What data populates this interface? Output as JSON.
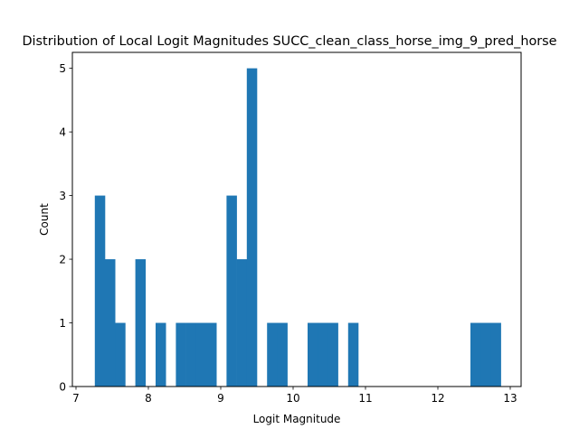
{
  "chart_data": {
    "type": "bar",
    "title": "Distribution of Local Logit Magnitudes SUCC_clean_class_horse_img_9_pred_horse",
    "xlabel": "Logit Magnitude",
    "ylabel": "Count",
    "xlim": [
      6.95,
      13.15
    ],
    "ylim": [
      0,
      5.25
    ],
    "x_ticks": [
      7,
      8,
      9,
      10,
      11,
      12,
      13
    ],
    "y_ticks": [
      0,
      1,
      2,
      3,
      4,
      5
    ],
    "bin_width": 0.14,
    "bins": [
      {
        "x0": 7.26,
        "count": 3
      },
      {
        "x0": 7.4,
        "count": 2
      },
      {
        "x0": 7.54,
        "count": 1
      },
      {
        "x0": 7.82,
        "count": 2
      },
      {
        "x0": 8.1,
        "count": 1
      },
      {
        "x0": 8.38,
        "count": 1
      },
      {
        "x0": 8.52,
        "count": 1
      },
      {
        "x0": 8.66,
        "count": 1
      },
      {
        "x0": 8.8,
        "count": 1
      },
      {
        "x0": 9.08,
        "count": 3
      },
      {
        "x0": 9.22,
        "count": 2
      },
      {
        "x0": 9.36,
        "count": 5
      },
      {
        "x0": 9.64,
        "count": 1
      },
      {
        "x0": 9.78,
        "count": 1
      },
      {
        "x0": 10.2,
        "count": 1
      },
      {
        "x0": 10.34,
        "count": 1
      },
      {
        "x0": 10.48,
        "count": 1
      },
      {
        "x0": 10.76,
        "count": 1
      },
      {
        "x0": 12.45,
        "count": 1
      },
      {
        "x0": 12.59,
        "count": 1
      },
      {
        "x0": 12.73,
        "count": 1
      }
    ],
    "bar_color": "#1f77b4",
    "grid": false,
    "legend": "none"
  }
}
